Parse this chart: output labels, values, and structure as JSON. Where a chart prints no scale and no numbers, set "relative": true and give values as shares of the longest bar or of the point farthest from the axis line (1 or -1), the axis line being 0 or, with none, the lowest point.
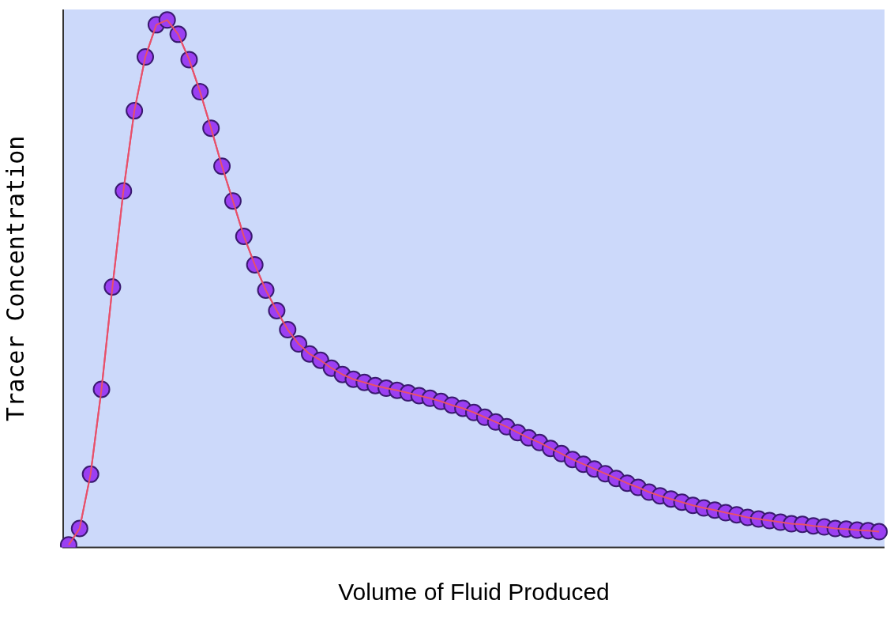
{
  "chart_data": {
    "type": "line",
    "relative": true,
    "xlabel": "Volume of Fluid Produced",
    "ylabel": "Tracer Concentration",
    "categories": [
      null,
      null,
      null,
      null,
      null,
      null,
      null,
      null,
      null,
      null,
      null,
      null,
      null,
      null,
      null,
      null,
      null,
      null,
      null,
      null,
      null,
      null,
      null,
      null,
      null,
      null,
      null,
      null,
      null,
      null,
      null,
      null,
      null,
      null,
      null,
      null,
      null,
      null,
      null,
      null,
      null,
      null,
      null,
      null,
      null,
      null,
      null,
      null,
      null,
      null,
      null,
      null,
      null,
      null,
      null,
      null,
      null,
      null,
      null,
      null,
      null,
      null,
      null,
      null,
      null,
      null,
      null,
      null,
      null,
      null,
      null,
      null,
      null,
      null,
      null
    ],
    "series": [
      {
        "color": "#e8506a",
        "values": [
          0.005,
          0.036,
          0.139,
          0.3,
          0.494,
          0.676,
          0.828,
          0.93,
          0.991,
          1,
          0.973,
          0.925,
          0.864,
          0.795,
          0.723,
          0.657,
          0.59,
          0.536,
          0.488,
          0.449,
          0.413,
          0.386,
          0.367,
          0.355,
          0.34,
          0.328,
          0.319,
          0.313,
          0.307,
          0.302,
          0.298,
          0.293,
          0.288,
          0.283,
          0.277,
          0.27,
          0.264,
          0.256,
          0.247,
          0.238,
          0.229,
          0.218,
          0.208,
          0.199,
          0.188,
          0.178,
          0.167,
          0.158,
          0.149,
          0.14,
          0.131,
          0.122,
          0.114,
          0.105,
          0.098,
          0.092,
          0.086,
          0.08,
          0.075,
          0.071,
          0.066,
          0.062,
          0.057,
          0.054,
          0.051,
          0.048,
          0.045,
          0.044,
          0.041,
          0.039,
          0.036,
          0.035,
          0.033,
          0.032,
          0.03
        ]
      }
    ],
    "marker": "circle",
    "grid": false,
    "legend": false
  }
}
